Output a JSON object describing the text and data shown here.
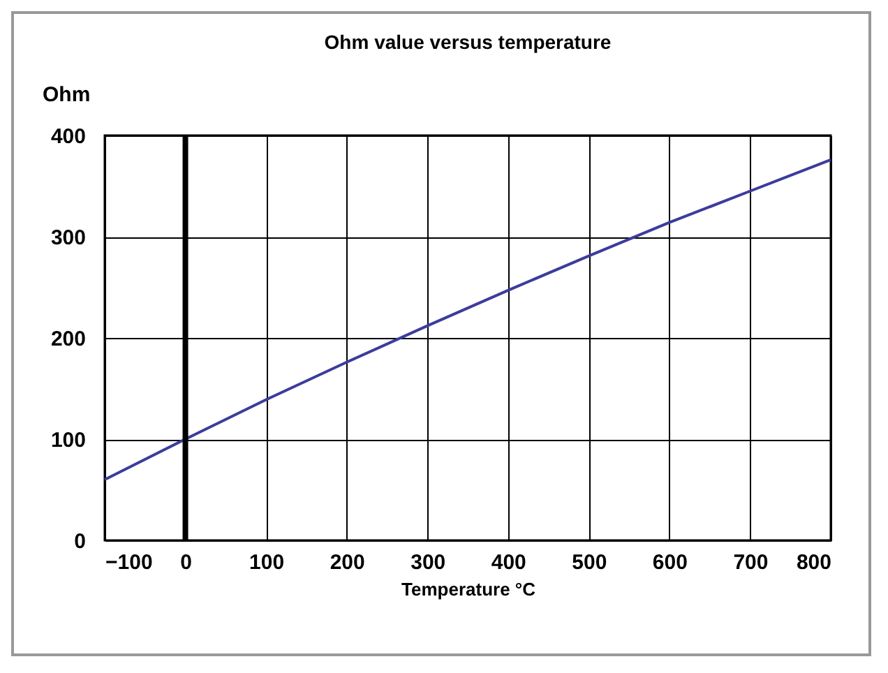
{
  "chart_data": {
    "type": "line",
    "title": "Ohm value versus temperature",
    "xlabel": "Temperature °C",
    "ylabel": "Ohm",
    "x": [
      -100,
      0,
      100,
      200,
      300,
      400,
      500,
      600,
      700,
      800
    ],
    "series": [
      {
        "color": "#3c3c9c",
        "values": [
          60,
          100,
          139,
          176,
          212,
          247,
          281,
          314,
          345,
          376
        ]
      }
    ],
    "xlim": [
      -100,
      800
    ],
    "xticks": [
      -100,
      0,
      100,
      200,
      300,
      400,
      500,
      600,
      700,
      800
    ],
    "ylim": [
      0,
      400
    ],
    "yticks": [
      0,
      100,
      200,
      300,
      400
    ],
    "grid": true,
    "ref_lines": [
      {
        "axis": "x",
        "value": 0,
        "color": "#000000"
      }
    ]
  }
}
